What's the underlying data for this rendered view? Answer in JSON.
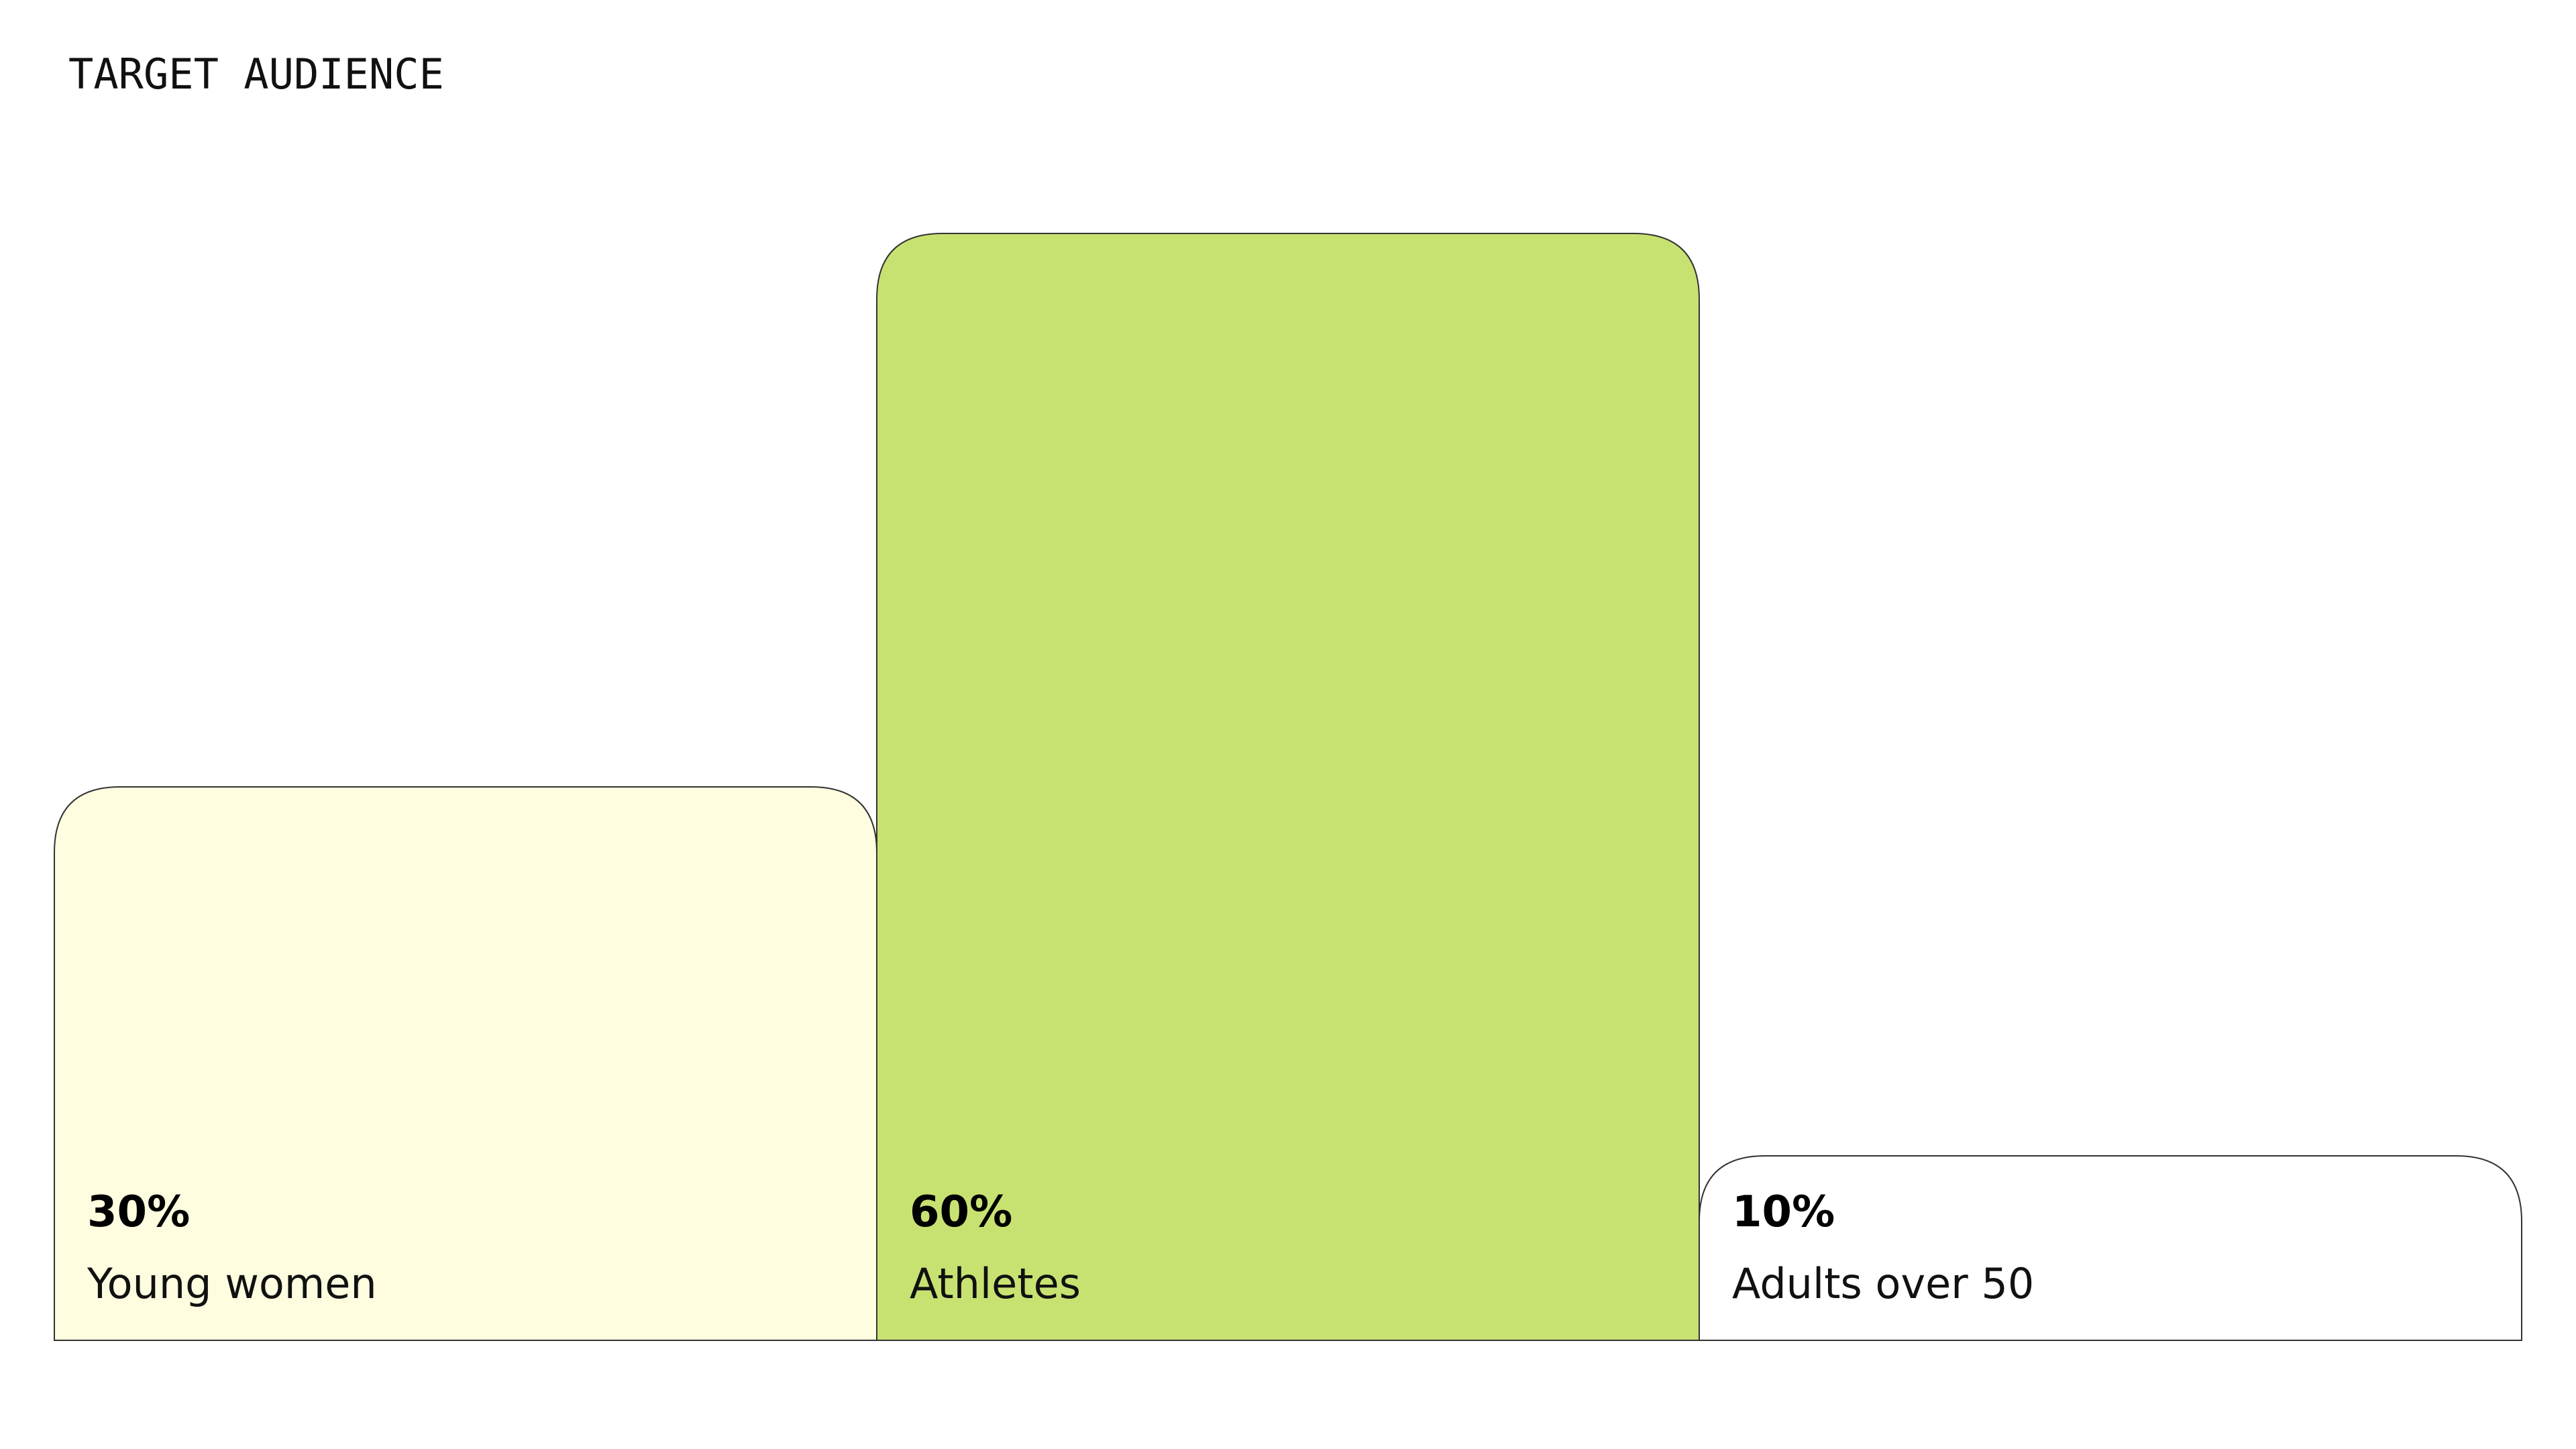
{
  "chart_data": {
    "type": "bar",
    "title": "TARGET AUDIENCE",
    "categories": [
      "Young women",
      "Athletes",
      "Adults over 50"
    ],
    "values": [
      30,
      60,
      10
    ],
    "value_labels": [
      "30%",
      "60%",
      "10%"
    ],
    "colors": [
      "#fefde0",
      "#c8e272",
      "#ffffff"
    ]
  }
}
